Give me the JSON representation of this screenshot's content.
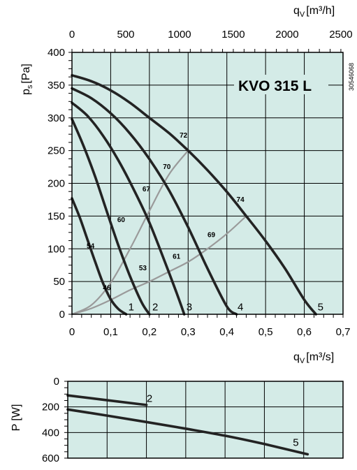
{
  "chart_data": [
    {
      "type": "line",
      "title": "KVO 315 L",
      "side_code": "30546068",
      "xlabel": "q",
      "xlabel_sub": "V",
      "xlabel_unit": "[m³/s]",
      "x2label": "q",
      "x2label_sub": "V",
      "x2label_unit": "[m³/h]",
      "ylabel": "p",
      "ylabel_sub": "s",
      "ylabel_unit": "[Pa]",
      "xlim": [
        0,
        0.7
      ],
      "ylim": [
        0,
        400
      ],
      "x2lim": [
        0,
        2520
      ],
      "x_ticks": [
        "0",
        "0,1",
        "0,2",
        "0,3",
        "0,4",
        "0,5",
        "0,6",
        "0,7"
      ],
      "y_ticks": [
        "0",
        "50",
        "100",
        "150",
        "200",
        "250",
        "300",
        "350",
        "400"
      ],
      "x2_ticks": [
        "0",
        "500",
        "1000",
        "1500",
        "2000",
        "2500"
      ],
      "grid": true,
      "background": "#d4ebe7",
      "curve_color": "#232323",
      "efficiency_color": "#9a9a9a",
      "series": [
        {
          "name": "1",
          "x": [
            0,
            0.02,
            0.04,
            0.06,
            0.08,
            0.1,
            0.12,
            0.14
          ],
          "y": [
            177,
            148,
            114,
            80,
            48,
            23,
            8,
            0
          ]
        },
        {
          "name": "2",
          "x": [
            0,
            0.03,
            0.06,
            0.09,
            0.12,
            0.15,
            0.18,
            0.2
          ],
          "y": [
            298,
            257,
            210,
            157,
            105,
            58,
            18,
            0
          ]
        },
        {
          "name": "3",
          "x": [
            0,
            0.04,
            0.08,
            0.12,
            0.16,
            0.2,
            0.24,
            0.27,
            0.29
          ],
          "y": [
            323,
            303,
            273,
            235,
            190,
            140,
            80,
            33,
            0
          ]
        },
        {
          "name": "4",
          "x": [
            0,
            0.05,
            0.1,
            0.15,
            0.2,
            0.25,
            0.3,
            0.35,
            0.4,
            0.425
          ],
          "y": [
            345,
            330,
            307,
            276,
            237,
            190,
            133,
            70,
            12,
            0
          ]
        },
        {
          "name": "5",
          "x": [
            0,
            0.05,
            0.1,
            0.15,
            0.2,
            0.25,
            0.3,
            0.35,
            0.4,
            0.45,
            0.5,
            0.55,
            0.6,
            0.63
          ],
          "y": [
            365,
            356,
            342,
            323,
            300,
            277,
            250,
            220,
            187,
            150,
            112,
            70,
            22,
            0
          ]
        }
      ],
      "efficiency_lines": [
        {
          "x": [
            0,
            0.05,
            0.1,
            0.15,
            0.2,
            0.25,
            0.3
          ],
          "y": [
            0,
            14,
            48,
            100,
            158,
            213,
            250
          ]
        },
        {
          "x": [
            0,
            0.05,
            0.1,
            0.15,
            0.2,
            0.25,
            0.3,
            0.35,
            0.4,
            0.45
          ],
          "y": [
            0,
            9,
            22,
            37,
            50,
            65,
            80,
            100,
            123,
            150
          ]
        }
      ],
      "efficiency_labels": [
        {
          "text": "72",
          "x": 0.288,
          "y": 270
        },
        {
          "text": "70",
          "x": 0.245,
          "y": 222
        },
        {
          "text": "67",
          "x": 0.192,
          "y": 188
        },
        {
          "text": "60",
          "x": 0.127,
          "y": 141
        },
        {
          "text": "54",
          "x": 0.048,
          "y": 101
        },
        {
          "text": "74",
          "x": 0.435,
          "y": 172
        },
        {
          "text": "69",
          "x": 0.36,
          "y": 118
        },
        {
          "text": "61",
          "x": 0.27,
          "y": 85
        },
        {
          "text": "53",
          "x": 0.183,
          "y": 67
        },
        {
          "text": "46",
          "x": 0.09,
          "y": 37
        }
      ],
      "curve_labels": [
        {
          "text": "1",
          "x": 0.153,
          "y": 6
        },
        {
          "text": "2",
          "x": 0.215,
          "y": 6
        },
        {
          "text": "3",
          "x": 0.303,
          "y": 6
        },
        {
          "text": "4",
          "x": 0.435,
          "y": 6
        },
        {
          "text": "5",
          "x": 0.642,
          "y": 6
        }
      ]
    },
    {
      "type": "line",
      "ylabel": "P [W]",
      "xlim": [
        0,
        0.7
      ],
      "ylim": [
        0,
        600
      ],
      "y_inverted": true,
      "y_ticks": [
        "0",
        "200",
        "400",
        "600"
      ],
      "grid": true,
      "series": [
        {
          "name": "2",
          "x": [
            0,
            0.2
          ],
          "y": [
            110,
            185
          ]
        },
        {
          "name": "5",
          "x": [
            0,
            0.1,
            0.2,
            0.3,
            0.4,
            0.5,
            0.61
          ],
          "y": [
            220,
            268,
            318,
            370,
            425,
            490,
            570
          ]
        }
      ],
      "curve_labels": [
        {
          "text": "2",
          "x": 0.208,
          "y": 160
        },
        {
          "text": "5",
          "x": 0.58,
          "y": 505
        }
      ]
    }
  ]
}
